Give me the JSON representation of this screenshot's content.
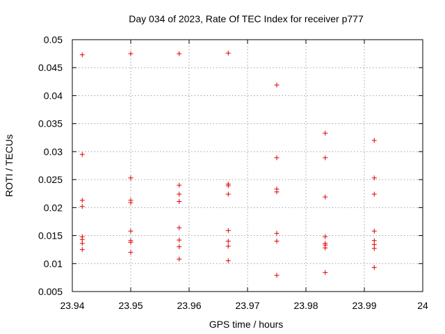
{
  "chart_data": {
    "type": "scatter",
    "title": "Day 034 of 2023, Rate Of TEC Index for receiver p777",
    "xlabel": "GPS time / hours",
    "ylabel": "ROTI / TECUs",
    "xlim": [
      23.94,
      24.0
    ],
    "ylim": [
      0.005,
      0.05
    ],
    "grid": true,
    "marker": "+",
    "color": "#e00000",
    "xticks": [
      "23.94",
      "23.95",
      "23.96",
      "23.97",
      "23.98",
      "23.99",
      "24"
    ],
    "yticks": [
      "0.005",
      "0.01",
      "0.015",
      "0.02",
      "0.025",
      "0.03",
      "0.035",
      "0.04",
      "0.045",
      "0.05"
    ],
    "points": [
      [
        23.9417,
        0.0473
      ],
      [
        23.9417,
        0.0295
      ],
      [
        23.9417,
        0.0213
      ],
      [
        23.9417,
        0.0202
      ],
      [
        23.9417,
        0.0148
      ],
      [
        23.9417,
        0.0143
      ],
      [
        23.9417,
        0.0136
      ],
      [
        23.9417,
        0.0125
      ],
      [
        23.95,
        0.0475
      ],
      [
        23.95,
        0.0253
      ],
      [
        23.95,
        0.0213
      ],
      [
        23.95,
        0.0209
      ],
      [
        23.95,
        0.0158
      ],
      [
        23.95,
        0.0141
      ],
      [
        23.95,
        0.0138
      ],
      [
        23.95,
        0.012
      ],
      [
        23.9583,
        0.0475
      ],
      [
        23.9583,
        0.024
      ],
      [
        23.9583,
        0.0224
      ],
      [
        23.9583,
        0.0211
      ],
      [
        23.9583,
        0.0164
      ],
      [
        23.9583,
        0.0142
      ],
      [
        23.9583,
        0.013
      ],
      [
        23.9583,
        0.0108
      ],
      [
        23.9667,
        0.0476
      ],
      [
        23.9667,
        0.0242
      ],
      [
        23.9667,
        0.0239
      ],
      [
        23.9667,
        0.0224
      ],
      [
        23.9667,
        0.0159
      ],
      [
        23.9667,
        0.014
      ],
      [
        23.9667,
        0.0131
      ],
      [
        23.9667,
        0.0105
      ],
      [
        23.975,
        0.0419
      ],
      [
        23.975,
        0.0289
      ],
      [
        23.975,
        0.0233
      ],
      [
        23.975,
        0.0228
      ],
      [
        23.975,
        0.0154
      ],
      [
        23.975,
        0.014
      ],
      [
        23.975,
        0.0079
      ],
      [
        23.9833,
        0.0333
      ],
      [
        23.9833,
        0.0289
      ],
      [
        23.9833,
        0.0219
      ],
      [
        23.9833,
        0.0148
      ],
      [
        23.9833,
        0.0136
      ],
      [
        23.9833,
        0.0133
      ],
      [
        23.9833,
        0.0128
      ],
      [
        23.9833,
        0.0084
      ],
      [
        23.9917,
        0.032
      ],
      [
        23.9917,
        0.0253
      ],
      [
        23.9917,
        0.0224
      ],
      [
        23.9917,
        0.0158
      ],
      [
        23.9917,
        0.0141
      ],
      [
        23.9917,
        0.0134
      ],
      [
        23.9917,
        0.0127
      ],
      [
        23.9917,
        0.0093
      ]
    ]
  }
}
